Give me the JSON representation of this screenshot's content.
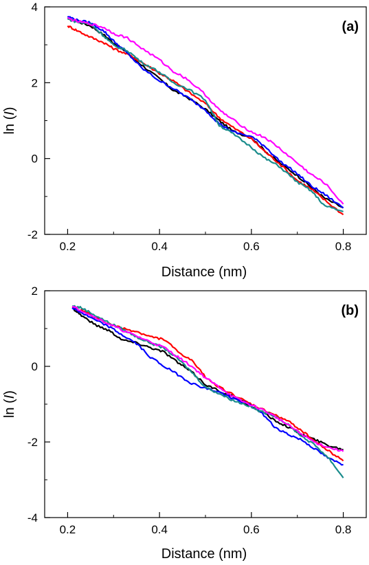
{
  "chart_data": [
    {
      "type": "line",
      "panel_label": "(a)",
      "xlabel": "Distance (nm)",
      "ylabel_prefix": "ln (",
      "ylabel_var": "I",
      "ylabel_suffix": ")",
      "xlim": [
        0.15,
        0.85
      ],
      "ylim": [
        -2,
        4
      ],
      "xticks": [
        0.2,
        0.4,
        0.6,
        0.8
      ],
      "xtick_labels": [
        "0.2",
        "0.4",
        "0.6",
        "0.8"
      ],
      "yticks": [
        -2,
        0,
        2,
        4
      ],
      "ytick_labels": [
        "-2",
        "0",
        "2",
        "4"
      ],
      "grid": false,
      "series": [
        {
          "color": "#000000",
          "x": [
            0.2,
            0.22,
            0.25,
            0.28,
            0.3,
            0.33,
            0.36,
            0.4,
            0.43,
            0.46,
            0.5,
            0.53,
            0.56,
            0.6,
            0.63,
            0.66,
            0.7,
            0.73,
            0.76,
            0.8
          ],
          "y": [
            3.68,
            3.62,
            3.5,
            3.25,
            3.05,
            2.78,
            2.48,
            2.1,
            1.8,
            1.62,
            1.3,
            1.0,
            0.72,
            0.55,
            0.2,
            -0.1,
            -0.45,
            -0.75,
            -1.05,
            -1.3
          ]
        },
        {
          "color": "#ff0000",
          "x": [
            0.2,
            0.22,
            0.25,
            0.28,
            0.3,
            0.33,
            0.36,
            0.4,
            0.43,
            0.46,
            0.5,
            0.53,
            0.56,
            0.6,
            0.63,
            0.66,
            0.7,
            0.73,
            0.76,
            0.8
          ],
          "y": [
            3.5,
            3.38,
            3.2,
            3.05,
            2.9,
            2.75,
            2.55,
            2.25,
            2.05,
            1.78,
            1.45,
            1.08,
            0.82,
            0.52,
            0.18,
            -0.12,
            -0.58,
            -0.8,
            -1.1,
            -1.48
          ]
        },
        {
          "color": "#0000ff",
          "x": [
            0.2,
            0.22,
            0.25,
            0.28,
            0.3,
            0.33,
            0.36,
            0.4,
            0.43,
            0.46,
            0.5,
            0.53,
            0.56,
            0.6,
            0.63,
            0.66,
            0.7,
            0.73,
            0.76,
            0.8
          ],
          "y": [
            3.75,
            3.65,
            3.58,
            3.35,
            3.1,
            2.78,
            2.4,
            2.05,
            1.85,
            1.62,
            1.28,
            0.92,
            0.7,
            0.58,
            0.32,
            -0.05,
            -0.4,
            -0.72,
            -0.95,
            -1.3
          ]
        },
        {
          "color": "#1a8c8c",
          "x": [
            0.2,
            0.22,
            0.25,
            0.28,
            0.3,
            0.33,
            0.36,
            0.4,
            0.43,
            0.46,
            0.5,
            0.53,
            0.56,
            0.6,
            0.63,
            0.66,
            0.7,
            0.73,
            0.76,
            0.8
          ],
          "y": [
            3.68,
            3.6,
            3.55,
            3.22,
            2.98,
            2.85,
            2.55,
            2.28,
            2.0,
            1.85,
            1.55,
            0.88,
            0.65,
            0.3,
            0.0,
            -0.2,
            -0.62,
            -0.85,
            -1.25,
            -1.4
          ]
        },
        {
          "color": "#ff00ff",
          "x": [
            0.2,
            0.22,
            0.25,
            0.28,
            0.3,
            0.33,
            0.36,
            0.4,
            0.43,
            0.46,
            0.5,
            0.53,
            0.56,
            0.6,
            0.63,
            0.66,
            0.7,
            0.73,
            0.76,
            0.8
          ],
          "y": [
            3.7,
            3.62,
            3.55,
            3.45,
            3.3,
            3.18,
            2.92,
            2.6,
            2.3,
            2.1,
            1.68,
            1.28,
            1.02,
            0.7,
            0.55,
            0.28,
            -0.12,
            -0.42,
            -0.65,
            -1.2
          ]
        }
      ]
    },
    {
      "type": "line",
      "panel_label": "(b)",
      "xlabel": "Distance (nm)",
      "ylabel_prefix": "ln (",
      "ylabel_var": "I",
      "ylabel_suffix": ")",
      "xlim": [
        0.15,
        0.85
      ],
      "ylim": [
        -4,
        2
      ],
      "xticks": [
        0.2,
        0.4,
        0.6,
        0.8
      ],
      "xtick_labels": [
        "0.2",
        "0.4",
        "0.6",
        "0.8"
      ],
      "yticks": [
        -4,
        -2,
        0,
        2
      ],
      "ytick_labels": [
        "-4",
        "-2",
        "0",
        "2"
      ],
      "grid": false,
      "series": [
        {
          "color": "#000000",
          "x": [
            0.21,
            0.23,
            0.26,
            0.29,
            0.32,
            0.35,
            0.38,
            0.41,
            0.44,
            0.47,
            0.5,
            0.53,
            0.56,
            0.59,
            0.62,
            0.65,
            0.68,
            0.71,
            0.74,
            0.77,
            0.8
          ],
          "y": [
            1.55,
            1.35,
            1.1,
            0.95,
            0.7,
            0.62,
            0.5,
            0.38,
            0.1,
            -0.15,
            -0.48,
            -0.65,
            -0.8,
            -1.0,
            -1.18,
            -1.42,
            -1.6,
            -1.8,
            -1.95,
            -2.1,
            -2.2
          ]
        },
        {
          "color": "#ff0000",
          "x": [
            0.21,
            0.23,
            0.26,
            0.29,
            0.32,
            0.35,
            0.38,
            0.41,
            0.44,
            0.47,
            0.5,
            0.53,
            0.56,
            0.59,
            0.62,
            0.65,
            0.68,
            0.71,
            0.74,
            0.77,
            0.8
          ],
          "y": [
            1.55,
            1.48,
            1.3,
            1.12,
            1.0,
            0.92,
            0.78,
            0.72,
            0.38,
            0.15,
            -0.28,
            -0.55,
            -0.75,
            -0.95,
            -1.12,
            -1.28,
            -1.45,
            -1.7,
            -2.0,
            -2.25,
            -2.5
          ]
        },
        {
          "color": "#0000ff",
          "x": [
            0.21,
            0.23,
            0.26,
            0.29,
            0.32,
            0.35,
            0.38,
            0.41,
            0.44,
            0.47,
            0.5,
            0.53,
            0.56,
            0.59,
            0.62,
            0.65,
            0.68,
            0.71,
            0.74,
            0.77,
            0.8
          ],
          "y": [
            1.55,
            1.42,
            1.22,
            1.05,
            0.82,
            0.6,
            0.25,
            0.0,
            -0.22,
            -0.45,
            -0.58,
            -0.68,
            -0.85,
            -0.98,
            -1.2,
            -1.6,
            -1.8,
            -1.95,
            -2.2,
            -2.45,
            -2.6
          ]
        },
        {
          "color": "#1a8c8c",
          "x": [
            0.21,
            0.23,
            0.26,
            0.29,
            0.32,
            0.35,
            0.38,
            0.41,
            0.44,
            0.47,
            0.5,
            0.53,
            0.56,
            0.59,
            0.62,
            0.65,
            0.68,
            0.71,
            0.74,
            0.77,
            0.8
          ],
          "y": [
            1.6,
            1.55,
            1.35,
            1.15,
            0.98,
            0.78,
            0.62,
            0.48,
            0.2,
            -0.15,
            -0.55,
            -0.72,
            -0.9,
            -1.02,
            -1.2,
            -1.3,
            -1.55,
            -1.85,
            -2.1,
            -2.45,
            -2.95
          ]
        },
        {
          "color": "#ff00ff",
          "x": [
            0.21,
            0.23,
            0.26,
            0.29,
            0.32,
            0.35,
            0.38,
            0.41,
            0.44,
            0.47,
            0.5,
            0.53,
            0.56,
            0.59,
            0.62,
            0.65,
            0.68,
            0.71,
            0.74,
            0.77,
            0.8
          ],
          "y": [
            1.58,
            1.48,
            1.3,
            1.12,
            0.95,
            0.8,
            0.65,
            0.5,
            0.25,
            0.0,
            -0.3,
            -0.55,
            -0.8,
            -0.98,
            -1.12,
            -1.32,
            -1.55,
            -1.8,
            -2.02,
            -2.15,
            -2.25
          ]
        }
      ]
    }
  ]
}
